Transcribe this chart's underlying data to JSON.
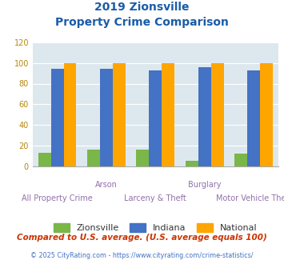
{
  "title_line1": "2019 Zionsville",
  "title_line2": "Property Crime Comparison",
  "categories": [
    "All Property Crime",
    "Arson",
    "Larceny & Theft",
    "Burglary",
    "Motor Vehicle Theft"
  ],
  "zionsville": [
    13,
    16,
    16,
    5,
    12
  ],
  "indiana": [
    94,
    94,
    93,
    96,
    93
  ],
  "national": [
    100,
    100,
    100,
    100,
    100
  ],
  "colors": {
    "zionsville": "#7ab648",
    "indiana": "#4472c4",
    "national": "#ffa500"
  },
  "ylim": [
    0,
    120
  ],
  "yticks": [
    0,
    20,
    40,
    60,
    80,
    100,
    120
  ],
  "legend_labels": [
    "Zionsville",
    "Indiana",
    "National"
  ],
  "footnote1": "Compared to U.S. average. (U.S. average equals 100)",
  "footnote2": "© 2025 CityRating.com - https://www.cityrating.com/crime-statistics/",
  "bg_color": "#dde8ee",
  "title_color": "#1a5ca8",
  "xlabel_color1": "#9370ab",
  "xlabel_color2": "#9370ab",
  "footnote1_color": "#cc3300",
  "footnote2_color": "#4472c4",
  "ytick_color": "#b8860b"
}
